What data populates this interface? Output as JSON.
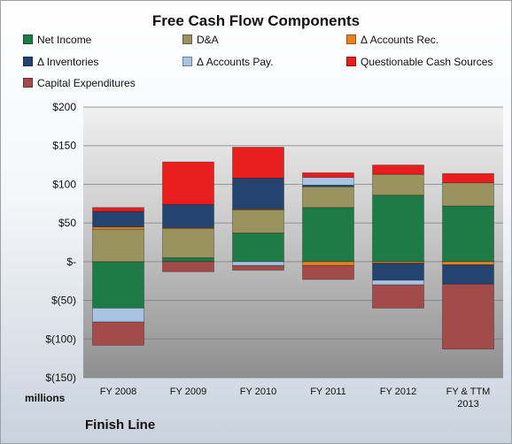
{
  "chart_data": {
    "type": "bar",
    "stacked": true,
    "title": "Free Cash Flow Components",
    "ylabel": "millions",
    "source_label": "Finish Line",
    "ylim": [
      -150,
      200
    ],
    "yticks": [
      200,
      150,
      100,
      50,
      0,
      -50,
      -100,
      -150
    ],
    "ytick_labels": [
      "$200",
      "$150",
      "$100",
      "$50",
      "$-",
      "$(50)",
      "$(100)",
      "$(150)"
    ],
    "categories": [
      "FY 2008",
      "FY 2009",
      "FY 2010",
      "FY 2011",
      "FY 2012",
      "FY & TTM 2013"
    ],
    "legend_position": "top",
    "grid": true,
    "series": [
      {
        "name": "Net Income",
        "color": "#1e7b45",
        "values": [
          -60,
          5,
          37,
          70,
          86,
          72
        ]
      },
      {
        "name": "D&A",
        "color": "#9a9360",
        "values": [
          42,
          38,
          30,
          27,
          27,
          30
        ]
      },
      {
        "name": "Δ Accounts Rec.",
        "color": "#e8821e",
        "values": [
          3,
          1,
          1,
          -5,
          -2,
          -4
        ]
      },
      {
        "name": "Δ Inventories",
        "color": "#22446e",
        "values": [
          20,
          30,
          40,
          2,
          -22,
          -25
        ]
      },
      {
        "name": "Δ Accounts Pay.",
        "color": "#a8c4e2",
        "values": [
          -18,
          0,
          -5,
          10,
          -6,
          0
        ]
      },
      {
        "name": "Questionable Cash Sources",
        "color": "#e81e1e",
        "values": [
          5,
          55,
          40,
          6,
          12,
          12
        ]
      },
      {
        "name": "Capital Expenditures",
        "color": "#a34b4b",
        "values": [
          -30,
          -13,
          -6,
          -18,
          -30,
          -84
        ]
      }
    ]
  }
}
